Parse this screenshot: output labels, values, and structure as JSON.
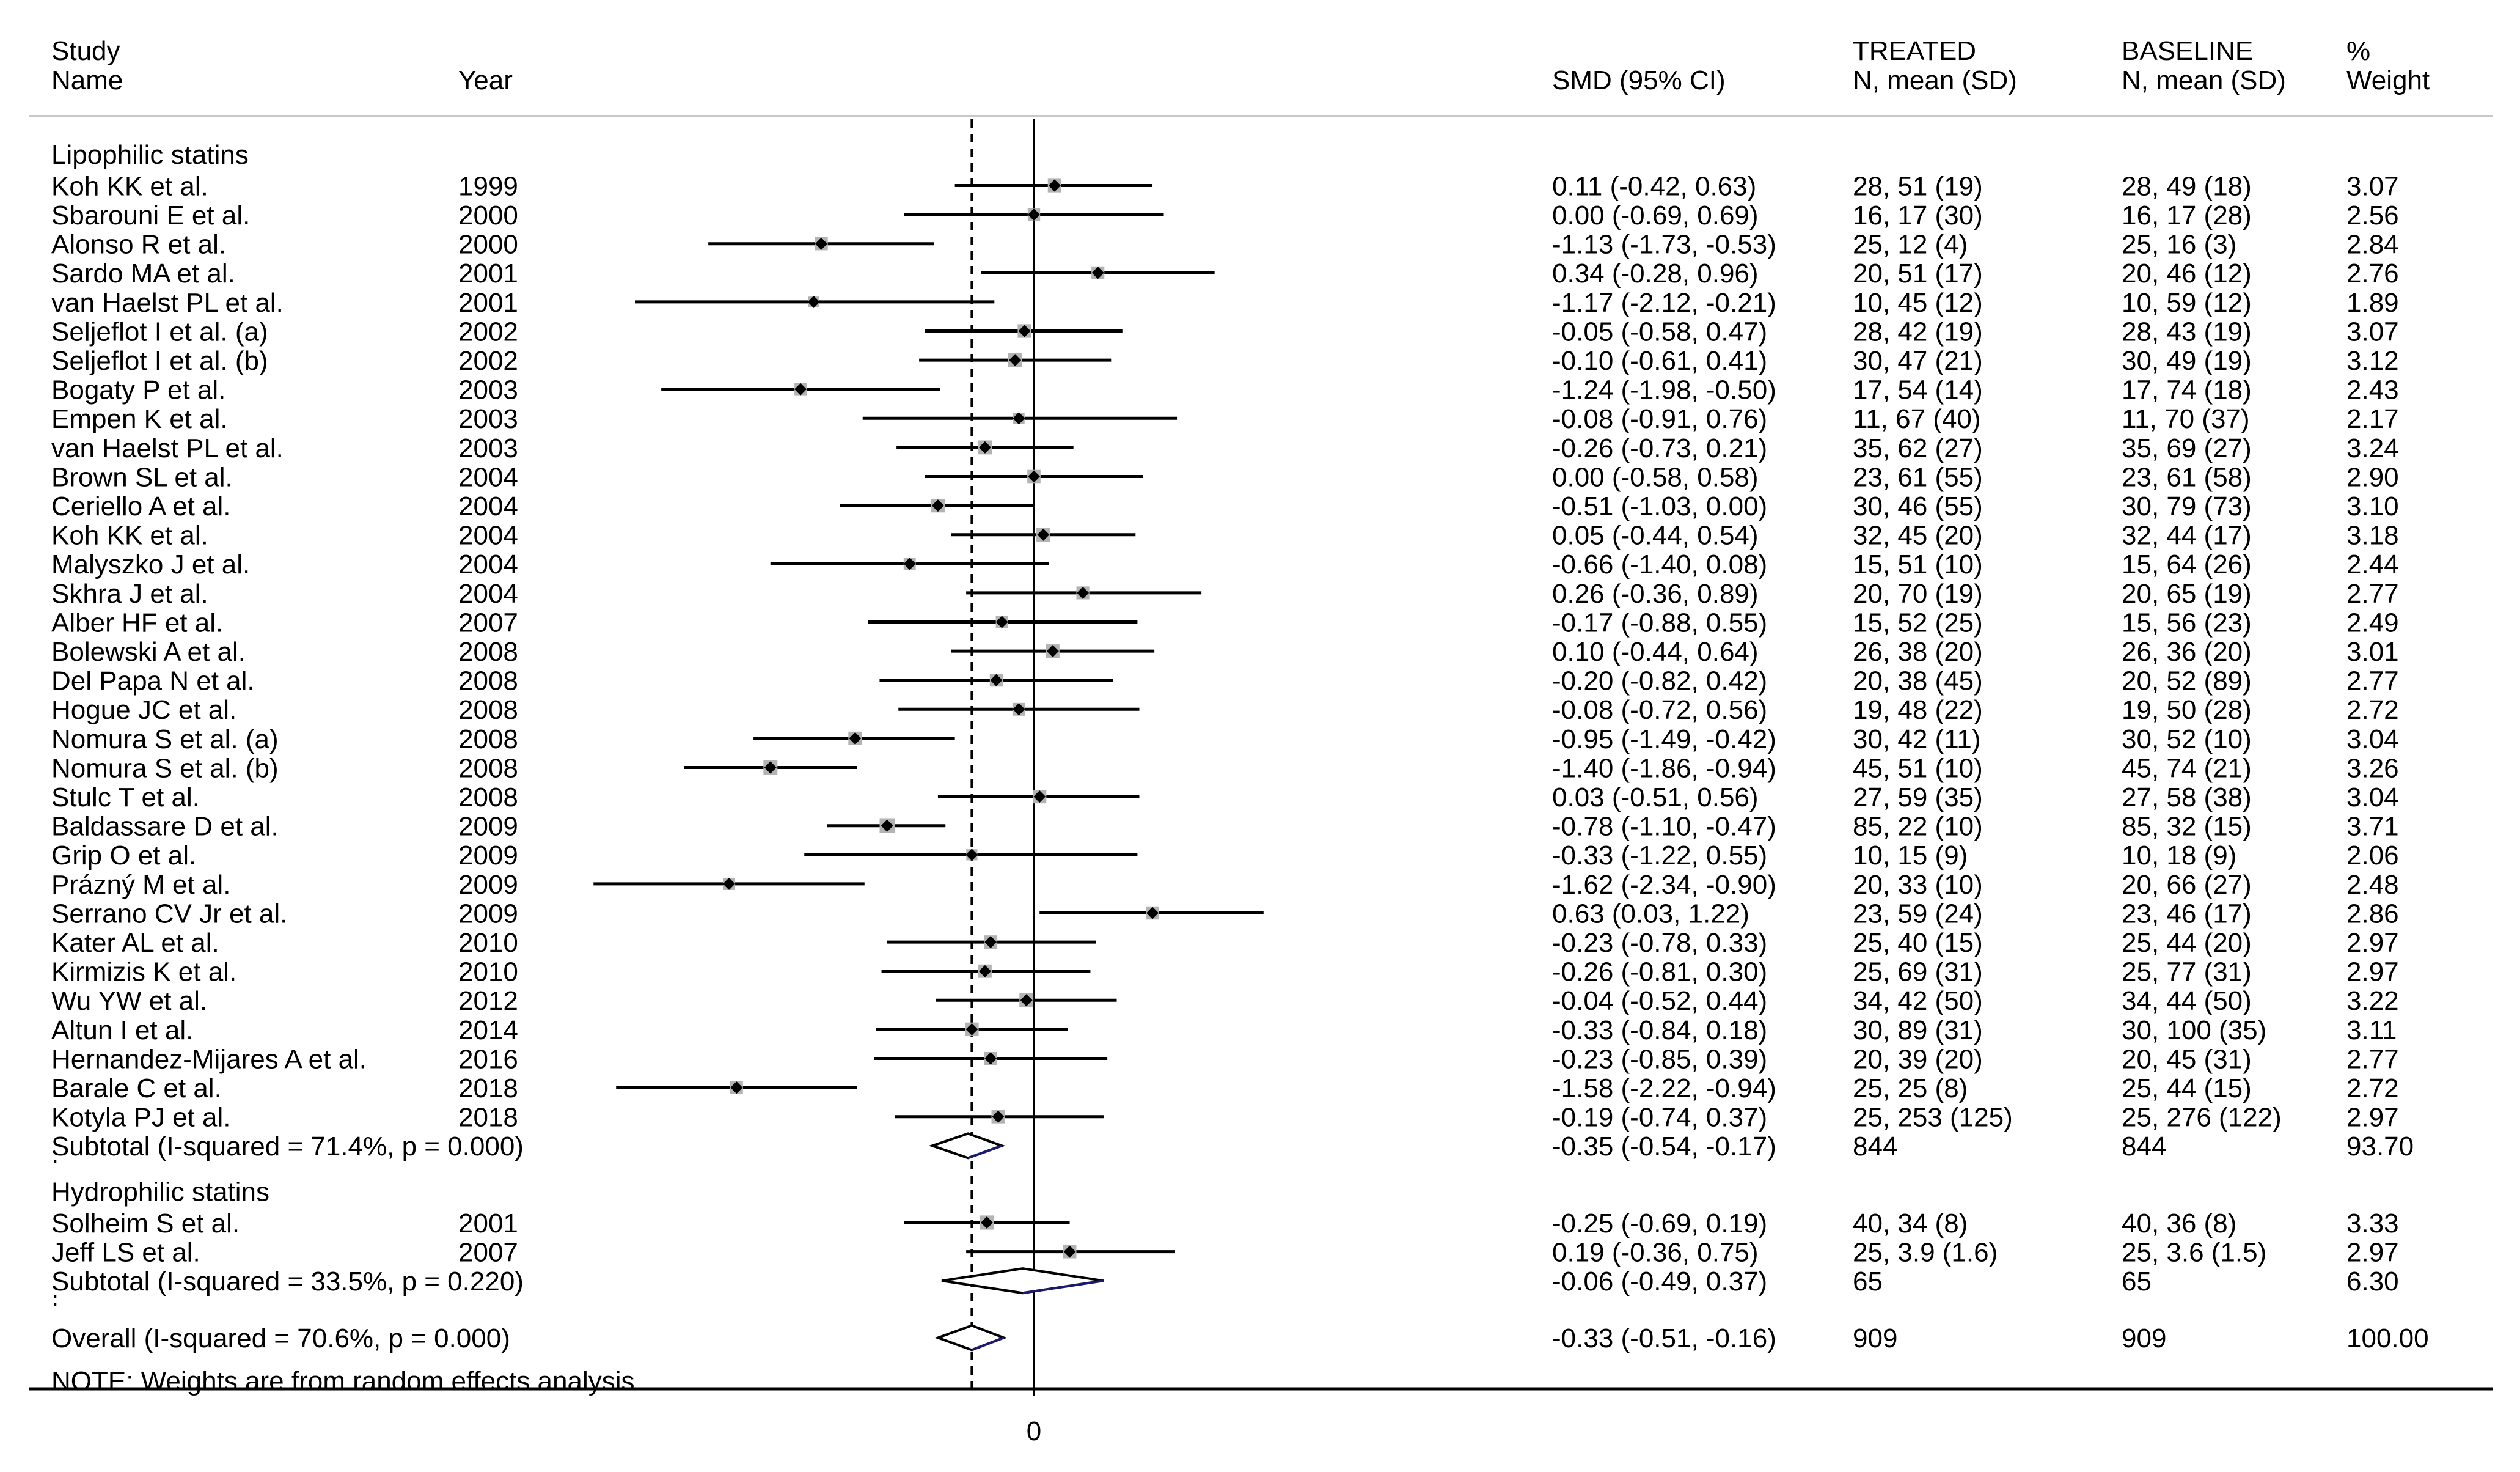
{
  "headers": {
    "study": [
      "Study",
      "Name"
    ],
    "year": "Year",
    "smd": "SMD (95% CI)",
    "treated": [
      "TREATED",
      "N, mean (SD)"
    ],
    "baseline": [
      "BASELINE",
      "N, mean (SD)"
    ],
    "weight": [
      "%",
      "Weight"
    ]
  },
  "chart_data": {
    "type": "forest",
    "xlabel": "",
    "x_tick_labels": [
      "0"
    ],
    "null_line": 0,
    "overall_line": -0.33,
    "x_range": [
      -1.9,
      3.3
    ],
    "groups": [
      {
        "name": "Lipophilic statins",
        "studies": [
          {
            "name": "Koh KK et al.",
            "year": "1999",
            "smd": 0.11,
            "lo": -0.42,
            "hi": 0.63,
            "ci_text": "0.11 (-0.42, 0.63)",
            "treated": "28, 51 (19)",
            "baseline": "28, 49 (18)",
            "weight": 3.07,
            "weight_text": "3.07"
          },
          {
            "name": "Sbarouni E et al.",
            "year": "2000",
            "smd": 0.0,
            "lo": -0.69,
            "hi": 0.69,
            "ci_text": "0.00 (-0.69, 0.69)",
            "treated": "16, 17 (30)",
            "baseline": "16, 17 (28)",
            "weight": 2.56,
            "weight_text": "2.56"
          },
          {
            "name": "Alonso R et al.",
            "year": "2000",
            "smd": -1.13,
            "lo": -1.73,
            "hi": -0.53,
            "ci_text": "-1.13 (-1.73, -0.53)",
            "treated": "25, 12 (4)",
            "baseline": "25, 16 (3)",
            "weight": 2.84,
            "weight_text": "2.84"
          },
          {
            "name": "Sardo MA et al.",
            "year": "2001",
            "smd": 0.34,
            "lo": -0.28,
            "hi": 0.96,
            "ci_text": "0.34 (-0.28, 0.96)",
            "treated": "20, 51 (17)",
            "baseline": "20, 46 (12)",
            "weight": 2.76,
            "weight_text": "2.76"
          },
          {
            "name": "van Haelst PL et al.",
            "year": "2001",
            "smd": -1.17,
            "lo": -2.12,
            "hi": -0.21,
            "ci_text": "-1.17 (-2.12, -0.21)",
            "treated": "10, 45 (12)",
            "baseline": "10, 59 (12)",
            "weight": 1.89,
            "weight_text": "1.89"
          },
          {
            "name": "Seljeflot I et al. (a)",
            "year": "2002",
            "smd": -0.05,
            "lo": -0.58,
            "hi": 0.47,
            "ci_text": "-0.05 (-0.58, 0.47)",
            "treated": "28, 42 (19)",
            "baseline": "28, 43 (19)",
            "weight": 3.07,
            "weight_text": "3.07"
          },
          {
            "name": "Seljeflot I et al. (b)",
            "year": "2002",
            "smd": -0.1,
            "lo": -0.61,
            "hi": 0.41,
            "ci_text": "-0.10 (-0.61, 0.41)",
            "treated": "30, 47 (21)",
            "baseline": "30, 49 (19)",
            "weight": 3.12,
            "weight_text": "3.12"
          },
          {
            "name": "Bogaty P et al.",
            "year": "2003",
            "smd": -1.24,
            "lo": -1.98,
            "hi": -0.5,
            "ci_text": "-1.24 (-1.98, -0.50)",
            "treated": "17, 54 (14)",
            "baseline": "17, 74 (18)",
            "weight": 2.43,
            "weight_text": "2.43"
          },
          {
            "name": "Empen K et al.",
            "year": "2003",
            "smd": -0.08,
            "lo": -0.91,
            "hi": 0.76,
            "ci_text": "-0.08 (-0.91, 0.76)",
            "treated": "11, 67 (40)",
            "baseline": "11, 70 (37)",
            "weight": 2.17,
            "weight_text": "2.17"
          },
          {
            "name": "van Haelst PL et al.",
            "year": "2003",
            "smd": -0.26,
            "lo": -0.73,
            "hi": 0.21,
            "ci_text": "-0.26 (-0.73, 0.21)",
            "treated": "35, 62 (27)",
            "baseline": "35, 69 (27)",
            "weight": 3.24,
            "weight_text": "3.24"
          },
          {
            "name": "Brown SL et al.",
            "year": "2004",
            "smd": 0.0,
            "lo": -0.58,
            "hi": 0.58,
            "ci_text": "0.00 (-0.58, 0.58)",
            "treated": "23, 61 (55)",
            "baseline": "23, 61 (58)",
            "weight": 2.9,
            "weight_text": "2.90"
          },
          {
            "name": "Ceriello A et al.",
            "year": "2004",
            "smd": -0.51,
            "lo": -1.03,
            "hi": 0.0,
            "ci_text": "-0.51 (-1.03, 0.00)",
            "treated": "30, 46 (55)",
            "baseline": "30, 79 (73)",
            "weight": 3.1,
            "weight_text": "3.10"
          },
          {
            "name": "Koh KK et al.",
            "year": "2004",
            "smd": 0.05,
            "lo": -0.44,
            "hi": 0.54,
            "ci_text": "0.05 (-0.44, 0.54)",
            "treated": "32, 45 (20)",
            "baseline": "32, 44 (17)",
            "weight": 3.18,
            "weight_text": "3.18"
          },
          {
            "name": "Malyszko J et al.",
            "year": "2004",
            "smd": -0.66,
            "lo": -1.4,
            "hi": 0.08,
            "ci_text": "-0.66 (-1.40, 0.08)",
            "treated": "15, 51 (10)",
            "baseline": "15, 64 (26)",
            "weight": 2.44,
            "weight_text": "2.44"
          },
          {
            "name": "Skhra J et al.",
            "year": "2004",
            "smd": 0.26,
            "lo": -0.36,
            "hi": 0.89,
            "ci_text": "0.26 (-0.36, 0.89)",
            "treated": "20, 70 (19)",
            "baseline": "20, 65 (19)",
            "weight": 2.77,
            "weight_text": "2.77"
          },
          {
            "name": "Alber HF et al.",
            "year": "2007",
            "smd": -0.17,
            "lo": -0.88,
            "hi": 0.55,
            "ci_text": "-0.17 (-0.88, 0.55)",
            "treated": "15, 52 (25)",
            "baseline": "15, 56 (23)",
            "weight": 2.49,
            "weight_text": "2.49"
          },
          {
            "name": "Bolewski A et al.",
            "year": "2008",
            "smd": 0.1,
            "lo": -0.44,
            "hi": 0.64,
            "ci_text": "0.10 (-0.44, 0.64)",
            "treated": "26, 38 (20)",
            "baseline": "26, 36 (20)",
            "weight": 3.01,
            "weight_text": "3.01"
          },
          {
            "name": "Del Papa N et al.",
            "year": "2008",
            "smd": -0.2,
            "lo": -0.82,
            "hi": 0.42,
            "ci_text": "-0.20 (-0.82, 0.42)",
            "treated": "20, 38 (45)",
            "baseline": "20, 52 (89)",
            "weight": 2.77,
            "weight_text": "2.77"
          },
          {
            "name": "Hogue JC et al.",
            "year": "2008",
            "smd": -0.08,
            "lo": -0.72,
            "hi": 0.56,
            "ci_text": "-0.08 (-0.72, 0.56)",
            "treated": "19, 48 (22)",
            "baseline": "19, 50 (28)",
            "weight": 2.72,
            "weight_text": "2.72"
          },
          {
            "name": "Nomura S et al. (a)",
            "year": "2008",
            "smd": -0.95,
            "lo": -1.49,
            "hi": -0.42,
            "ci_text": "-0.95 (-1.49, -0.42)",
            "treated": "30, 42 (11)",
            "baseline": "30, 52 (10)",
            "weight": 3.04,
            "weight_text": "3.04"
          },
          {
            "name": "Nomura S et al. (b)",
            "year": "2008",
            "smd": -1.4,
            "lo": -1.86,
            "hi": -0.94,
            "ci_text": "-1.40 (-1.86, -0.94)",
            "treated": "45, 51 (10)",
            "baseline": "45, 74 (21)",
            "weight": 3.26,
            "weight_text": "3.26"
          },
          {
            "name": "Stulc T et al.",
            "year": "2008",
            "smd": 0.03,
            "lo": -0.51,
            "hi": 0.56,
            "ci_text": "0.03 (-0.51, 0.56)",
            "treated": "27, 59 (35)",
            "baseline": "27, 58 (38)",
            "weight": 3.04,
            "weight_text": "3.04"
          },
          {
            "name": "Baldassare D et al.",
            "year": "2009",
            "smd": -0.78,
            "lo": -1.1,
            "hi": -0.47,
            "ci_text": "-0.78 (-1.10, -0.47)",
            "treated": "85, 22 (10)",
            "baseline": "85, 32 (15)",
            "weight": 3.71,
            "weight_text": "3.71"
          },
          {
            "name": "Grip O et al.",
            "year": "2009",
            "smd": -0.33,
            "lo": -1.22,
            "hi": 0.55,
            "ci_text": "-0.33 (-1.22, 0.55)",
            "treated": "10, 15 (9)",
            "baseline": "10, 18 (9)",
            "weight": 2.06,
            "weight_text": "2.06"
          },
          {
            "name": "Prázný M et al.",
            "year": "2009",
            "smd": -1.62,
            "lo": -2.34,
            "hi": -0.9,
            "ci_text": "-1.62 (-2.34, -0.90)",
            "treated": "20, 33 (10)",
            "baseline": "20, 66 (27)",
            "weight": 2.48,
            "weight_text": "2.48"
          },
          {
            "name": "Serrano CV Jr et al.",
            "year": "2009",
            "smd": 0.63,
            "lo": 0.03,
            "hi": 1.22,
            "ci_text": "0.63 (0.03, 1.22)",
            "treated": "23, 59 (24)",
            "baseline": "23, 46 (17)",
            "weight": 2.86,
            "weight_text": "2.86"
          },
          {
            "name": "Kater AL et al.",
            "year": "2010",
            "smd": -0.23,
            "lo": -0.78,
            "hi": 0.33,
            "ci_text": "-0.23 (-0.78, 0.33)",
            "treated": "25, 40 (15)",
            "baseline": "25, 44 (20)",
            "weight": 2.97,
            "weight_text": "2.97"
          },
          {
            "name": "Kirmizis K et al.",
            "year": "2010",
            "smd": -0.26,
            "lo": -0.81,
            "hi": 0.3,
            "ci_text": "-0.26 (-0.81, 0.30)",
            "treated": "25, 69 (31)",
            "baseline": "25, 77 (31)",
            "weight": 2.97,
            "weight_text": "2.97"
          },
          {
            "name": "Wu YW et al.",
            "year": "2012",
            "smd": -0.04,
            "lo": -0.52,
            "hi": 0.44,
            "ci_text": "-0.04 (-0.52, 0.44)",
            "treated": "34, 42 (50)",
            "baseline": "34, 44 (50)",
            "weight": 3.22,
            "weight_text": "3.22"
          },
          {
            "name": "Altun I et al.",
            "year": "2014",
            "smd": -0.33,
            "lo": -0.84,
            "hi": 0.18,
            "ci_text": "-0.33 (-0.84, 0.18)",
            "treated": "30, 89 (31)",
            "baseline": "30, 100 (35)",
            "weight": 3.11,
            "weight_text": "3.11"
          },
          {
            "name": "Hernandez-Mijares A et al.",
            "year": "2016",
            "smd": -0.23,
            "lo": -0.85,
            "hi": 0.39,
            "ci_text": "-0.23 (-0.85, 0.39)",
            "treated": "20, 39 (20)",
            "baseline": "20, 45 (31)",
            "weight": 2.77,
            "weight_text": "2.77"
          },
          {
            "name": "Barale C et al.",
            "year": "2018",
            "smd": -1.58,
            "lo": -2.22,
            "hi": -0.94,
            "ci_text": "-1.58 (-2.22, -0.94)",
            "treated": "25, 25 (8)",
            "baseline": "25, 44 (15)",
            "weight": 2.72,
            "weight_text": "2.72"
          },
          {
            "name": "Kotyla PJ et al.",
            "year": "2018",
            "smd": -0.19,
            "lo": -0.74,
            "hi": 0.37,
            "ci_text": "-0.19 (-0.74, 0.37)",
            "treated": "25, 253 (125)",
            "baseline": "25, 276 (122)",
            "weight": 2.97,
            "weight_text": "2.97"
          }
        ],
        "subtotal": {
          "label": "Subtotal  (I-squared = 71.4%, p = 0.000)",
          "smd": -0.35,
          "lo": -0.54,
          "hi": -0.17,
          "ci_text": "-0.35 (-0.54, -0.17)",
          "treated": "844",
          "baseline": "844",
          "weight_text": "93.70"
        }
      },
      {
        "name": "Hydrophilic statins",
        "studies": [
          {
            "name": "Solheim S et al.",
            "year": "2001",
            "smd": -0.25,
            "lo": -0.69,
            "hi": 0.19,
            "ci_text": "-0.25 (-0.69, 0.19)",
            "treated": "40, 34 (8)",
            "baseline": "40, 36 (8)",
            "weight": 3.33,
            "weight_text": "3.33"
          },
          {
            "name": "Jeff LS et al.",
            "year": "2007",
            "smd": 0.19,
            "lo": -0.36,
            "hi": 0.75,
            "ci_text": "0.19 (-0.36, 0.75)",
            "treated": "25, 3.9 (1.6)",
            "baseline": "25, 3.6 (1.5)",
            "weight": 2.97,
            "weight_text": "2.97"
          }
        ],
        "subtotal": {
          "label": "Subtotal  (I-squared = 33.5%, p = 0.220)",
          "smd": -0.06,
          "lo": -0.49,
          "hi": 0.37,
          "ci_text": "-0.06 (-0.49, 0.37)",
          "treated": "65",
          "baseline": "65",
          "weight_text": "6.30"
        }
      }
    ],
    "overall": {
      "label": "Overall  (I-squared = 70.6%, p = 0.000)",
      "smd": -0.33,
      "lo": -0.51,
      "hi": -0.16,
      "ci_text": "-0.33 (-0.51, -0.16)",
      "treated": "909",
      "baseline": "909",
      "weight_text": "100.00"
    },
    "note": "NOTE: Weights are from random effects analysis",
    "colors": {
      "line": "#000000",
      "weight_box": "#b3b3b3",
      "diamond_edge": "#000000",
      "diamond_right_edge": "#1a1a6e"
    }
  }
}
